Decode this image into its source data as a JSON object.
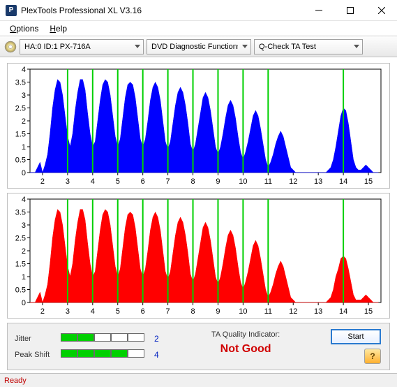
{
  "window": {
    "title": "PlexTools Professional XL V3.16",
    "icon_letter": "P"
  },
  "menu": {
    "options_label": "Options",
    "help_label": "Help"
  },
  "toolbar": {
    "device_label": "HA:0 ID:1   PX-716A",
    "function_label": "DVD Diagnostic Functions",
    "test_label": "Q-Check TA Test"
  },
  "chart_top": {
    "type": "area-histogram",
    "background_color": "#ffffff",
    "grid_color": "#d0d0d0",
    "axis_color": "#000000",
    "fill_color": "#0000ff",
    "marker_line_color": "#00d000",
    "label_fontsize": 11,
    "xlim": [
      1.5,
      15.5
    ],
    "ylim": [
      0,
      4
    ],
    "ytick_step": 0.5,
    "xticks": [
      2,
      3,
      4,
      5,
      6,
      7,
      8,
      9,
      10,
      11,
      12,
      13,
      14,
      15
    ],
    "peak_markers_x": [
      3,
      4,
      5,
      6,
      7,
      8,
      9,
      10,
      11,
      14
    ],
    "data_x_step": 0.1,
    "data": [
      0,
      0,
      0,
      0.2,
      0.4,
      0,
      0.3,
      0.7,
      1.5,
      2.5,
      3.2,
      3.6,
      3.5,
      3.0,
      2.2,
      1.4,
      1.0,
      1.5,
      2.4,
      3.1,
      3.6,
      3.6,
      3.2,
      2.3,
      1.5,
      1.0,
      1.2,
      2.0,
      2.8,
      3.4,
      3.6,
      3.5,
      3.0,
      2.2,
      1.4,
      1.0,
      1.3,
      2.1,
      2.9,
      3.4,
      3.5,
      3.4,
      2.9,
      2.1,
      1.3,
      1.0,
      1.3,
      2.0,
      2.8,
      3.3,
      3.5,
      3.3,
      2.8,
      2.0,
      1.2,
      0.9,
      1.2,
      1.9,
      2.6,
      3.1,
      3.3,
      3.1,
      2.6,
      1.9,
      1.1,
      0.8,
      1.1,
      1.7,
      2.3,
      2.9,
      3.1,
      2.9,
      2.4,
      1.7,
      1.0,
      0.7,
      1.0,
      1.5,
      2.1,
      2.6,
      2.8,
      2.6,
      2.1,
      1.4,
      0.8,
      0.5,
      0.8,
      1.2,
      1.7,
      2.2,
      2.4,
      2.2,
      1.7,
      1.1,
      0.5,
      0.2,
      0.4,
      0.7,
      1.1,
      1.4,
      1.6,
      1.4,
      1.0,
      0.6,
      0.2,
      0.1,
      0,
      0,
      0,
      0,
      0,
      0,
      0,
      0,
      0,
      0,
      0,
      0,
      0,
      0.1,
      0.2,
      0.5,
      1.0,
      1.6,
      2.2,
      2.5,
      2.4,
      1.9,
      1.2,
      0.5,
      0.2,
      0.1,
      0.1,
      0.2,
      0.3,
      0.2,
      0.1,
      0,
      0,
      0
    ]
  },
  "chart_bottom": {
    "type": "area-histogram",
    "background_color": "#ffffff",
    "grid_color": "#d0d0d0",
    "axis_color": "#000000",
    "fill_color": "#ff0000",
    "marker_line_color": "#00d000",
    "label_fontsize": 11,
    "xlim": [
      1.5,
      15.5
    ],
    "ylim": [
      0,
      4
    ],
    "ytick_step": 0.5,
    "xticks": [
      2,
      3,
      4,
      5,
      6,
      7,
      8,
      9,
      10,
      11,
      12,
      13,
      14,
      15
    ],
    "peak_markers_x": [
      3,
      4,
      5,
      6,
      7,
      8,
      9,
      10,
      11,
      14
    ],
    "data_x_step": 0.1,
    "data": [
      0,
      0,
      0,
      0.2,
      0.4,
      0,
      0.3,
      0.7,
      1.5,
      2.5,
      3.2,
      3.6,
      3.5,
      3.0,
      2.2,
      1.4,
      1.0,
      1.5,
      2.4,
      3.1,
      3.6,
      3.6,
      3.2,
      2.3,
      1.5,
      1.0,
      1.2,
      2.0,
      2.8,
      3.4,
      3.6,
      3.5,
      3.0,
      2.2,
      1.4,
      1.0,
      1.3,
      2.1,
      2.9,
      3.4,
      3.5,
      3.4,
      2.9,
      2.1,
      1.3,
      1.0,
      1.3,
      2.0,
      2.8,
      3.3,
      3.5,
      3.3,
      2.8,
      2.0,
      1.2,
      0.9,
      1.2,
      1.9,
      2.6,
      3.1,
      3.3,
      3.1,
      2.6,
      1.9,
      1.1,
      0.8,
      1.1,
      1.7,
      2.3,
      2.9,
      3.1,
      2.9,
      2.4,
      1.7,
      1.0,
      0.7,
      1.0,
      1.5,
      2.1,
      2.6,
      2.8,
      2.6,
      2.1,
      1.4,
      0.8,
      0.5,
      0.8,
      1.2,
      1.7,
      2.2,
      2.4,
      2.2,
      1.7,
      1.1,
      0.5,
      0.2,
      0.4,
      0.7,
      1.1,
      1.4,
      1.6,
      1.4,
      1.0,
      0.6,
      0.2,
      0.1,
      0,
      0,
      0,
      0,
      0,
      0,
      0,
      0,
      0,
      0,
      0,
      0,
      0,
      0.1,
      0.2,
      0.5,
      1.0,
      1.3,
      1.7,
      1.8,
      1.7,
      1.3,
      0.8,
      0.3,
      0.1,
      0.1,
      0.1,
      0.2,
      0.3,
      0.2,
      0.1,
      0,
      0,
      0
    ]
  },
  "metrics": {
    "jitter_label": "Jitter",
    "jitter_filled": 2,
    "jitter_total": 5,
    "jitter_value": "2",
    "peak_shift_label": "Peak Shift",
    "peak_shift_filled": 4,
    "peak_shift_total": 5,
    "peak_shift_value": "4"
  },
  "ta_indicator": {
    "label": "TA Quality Indicator:",
    "value": "Not Good",
    "value_color": "#d00000"
  },
  "buttons": {
    "start_label": "Start",
    "help_glyph": "?"
  },
  "status": {
    "text": "Ready",
    "color": "#c00000"
  },
  "colors": {
    "titlebar_text": "#000000",
    "menu_text": "#000000"
  }
}
